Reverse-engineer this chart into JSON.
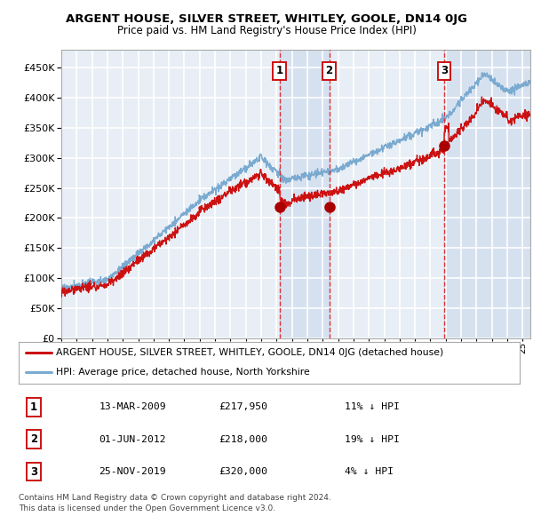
{
  "title": "ARGENT HOUSE, SILVER STREET, WHITLEY, GOOLE, DN14 0JG",
  "subtitle": "Price paid vs. HM Land Registry's House Price Index (HPI)",
  "yticks": [
    0,
    50000,
    100000,
    150000,
    200000,
    250000,
    300000,
    350000,
    400000,
    450000
  ],
  "xlim_start": 1995.0,
  "xlim_end": 2025.5,
  "sale_dates": [
    2009.19,
    2012.42,
    2019.9
  ],
  "sale_prices": [
    217950,
    218000,
    320000
  ],
  "sale_labels": [
    "1",
    "2",
    "3"
  ],
  "vline_color": "#dd2222",
  "sale_marker_color": "#aa0000",
  "hpi_line_color": "#7aaad0",
  "price_line_color": "#cc1111",
  "legend_items": [
    "ARGENT HOUSE, SILVER STREET, WHITLEY, GOOLE, DN14 0JG (detached house)",
    "HPI: Average price, detached house, North Yorkshire"
  ],
  "table_rows": [
    {
      "num": "1",
      "date": "13-MAR-2009",
      "price": "£217,950",
      "pct": "11%",
      "dir": "↓",
      "label": "HPI"
    },
    {
      "num": "2",
      "date": "01-JUN-2012",
      "price": "£218,000",
      "pct": "19%",
      "dir": "↓",
      "label": "HPI"
    },
    {
      "num": "3",
      "date": "25-NOV-2019",
      "price": "£320,000",
      "pct": "4%",
      "dir": "↓",
      "label": "HPI"
    }
  ],
  "footer": "Contains HM Land Registry data © Crown copyright and database right 2024.\nThis data is licensed under the Open Government Licence v3.0.",
  "background_color": "#ffffff",
  "plot_bg_color": "#e8eef5",
  "grid_color": "#ffffff",
  "shade_color": "#c8d8ec",
  "border_color": "#aaaaaa"
}
